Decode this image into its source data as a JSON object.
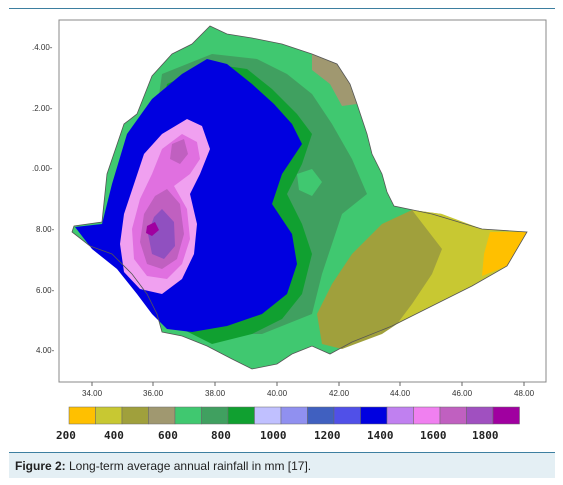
{
  "figure": {
    "caption_label": "Figure 2:",
    "caption_text": " Long-term average annual rainfall in mm [17]."
  },
  "map": {
    "y_ticks": [
      ".4.00-",
      ".2.00-",
      ".0.00-",
      "8.00-",
      "6.00-",
      "4.00-"
    ],
    "x_ticks": [
      "34.00",
      "36.00",
      "38.00",
      "40.00",
      "42.00",
      "44.00",
      "46.00",
      "48.00"
    ],
    "legend_labels": [
      "200",
      "400",
      "600",
      "800",
      "1000",
      "1200",
      "1400",
      "1600",
      "1800"
    ],
    "legend_colors": [
      "#ffc000",
      "#c8c832",
      "#a0a03c",
      "#a09870",
      "#40c870",
      "#40a060",
      "#10a030",
      "#c0c0ff",
      "#9090f0",
      "#4060c0",
      "#5050e8",
      "#0000e0",
      "#c080f0",
      "#f080f0",
      "#c060c0",
      "#a050c0",
      "#a000a0"
    ],
    "zone_colors": {
      "yellow": "#ffc000",
      "yellow_green": "#c8c832",
      "olive": "#a0a03c",
      "khaki": "#a09870",
      "light_green": "#40c870",
      "teal_green": "#40a060",
      "green": "#10a030",
      "blue": "#0000e0",
      "light_pink": "#f0a0f0",
      "pink": "#e070e0",
      "magenta": "#c060c0",
      "violet": "#9050c0",
      "dark_purple": "#a000a0"
    }
  }
}
